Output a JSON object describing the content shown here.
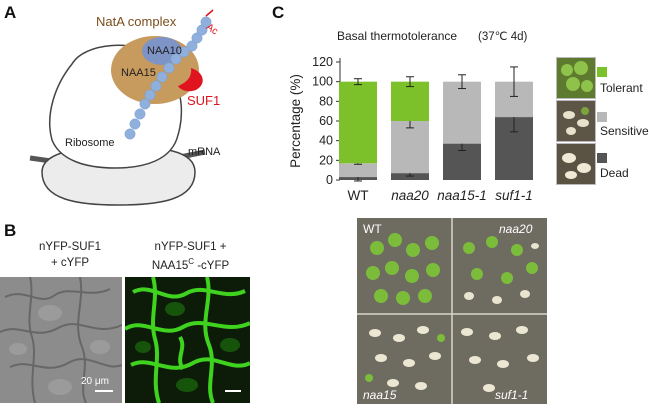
{
  "panels": {
    "a": {
      "letter": "A",
      "complex_label": "NatA complex",
      "naa10": "NAA10",
      "naa15": "NAA15",
      "ac": "Ac",
      "suf1": "SUF1",
      "ribosome": "Ribosome",
      "mrna": "mRNA"
    },
    "b": {
      "letter": "B",
      "left_line1": "nYFP-SUF1",
      "left_line2": "+ cYFP",
      "right_line1": "nYFP-SUF1 +",
      "right_line2_main": "NAA15",
      "right_line2_sup": "C",
      "right_line2_tail": " -cYFP",
      "scale_label": "20 μm"
    },
    "c": {
      "letter": "C",
      "title": "Basal thermotolerance",
      "condition": "(37℃ 4d)",
      "photo_labels": [
        "WT",
        "naa20",
        "naa15",
        "suf1-1"
      ]
    }
  },
  "colors": {
    "tolerant": "#7cc12a",
    "sensitive": "#b8b8b8",
    "dead": "#555555",
    "suf1": "#e0141e",
    "natA": "#c79a5e",
    "naa10": "#7e93c6",
    "chain": "#8fb0dd"
  },
  "chart_data": {
    "type": "bar",
    "stacked": true,
    "title": "Basal thermotolerance",
    "subtitle": "(37℃ 4d)",
    "ylabel": "Percentage (%)",
    "xlabel": "",
    "ylim": [
      0,
      120
    ],
    "yticks": [
      "0",
      "20",
      "40",
      "60",
      "80",
      "100",
      "120"
    ],
    "grid": false,
    "legend_position": "right",
    "categories": [
      "WT",
      "naa20",
      "naa15-1",
      "suf1-1"
    ],
    "series": [
      {
        "name": "Dead",
        "values": [
          3,
          7,
          37,
          64
        ],
        "errors": [
          4,
          3,
          7,
          15
        ]
      },
      {
        "name": "Sensitive",
        "values": [
          14,
          53,
          63,
          36
        ],
        "errors": [
          1,
          7,
          0,
          0
        ]
      },
      {
        "name": "Tolerant",
        "values": [
          83,
          40,
          0,
          0
        ],
        "errors": [
          3,
          5,
          7,
          15
        ]
      }
    ]
  }
}
